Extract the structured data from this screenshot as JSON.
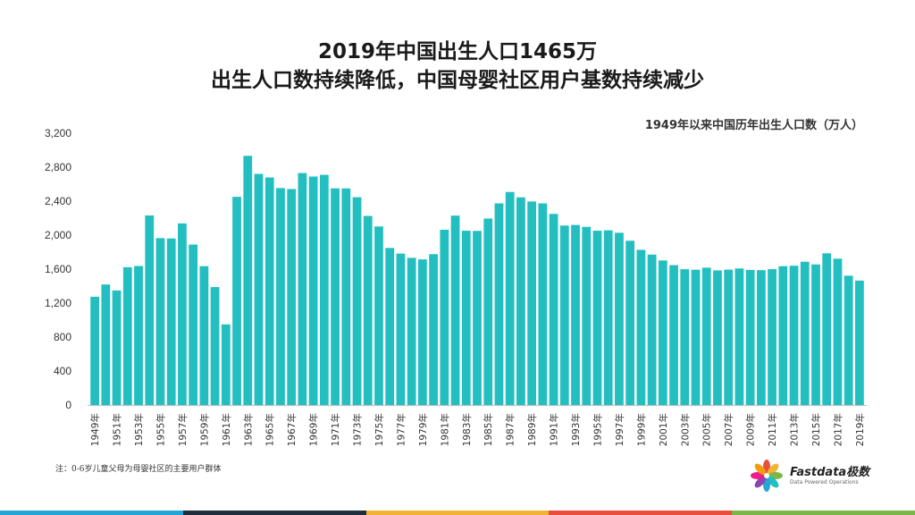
{
  "header": {
    "title_line1": "2019年中国出生人口1465万",
    "title_line2": "出生人口数持续降低，中国母婴社区用户基数持续减少"
  },
  "footnote": "注：0-6岁儿童父母为母婴社区的主要用户群体",
  "logo": {
    "name": "Fastdata极数",
    "tagline": "Data Powered Operations",
    "icon": "flower-petals-icon"
  },
  "colors": {
    "bar": "#23BFC0",
    "bottom_bar": [
      "#23A6D5",
      "#1F2D3D",
      "#F2B233",
      "#E94E3C",
      "#7AB648"
    ]
  },
  "chart_data": {
    "type": "bar",
    "title": "1949年以来中国历年出生人口数（万人）",
    "xlabel": "",
    "ylabel": "",
    "ylim": [
      0,
      3200
    ],
    "yticks": [
      "0",
      "400",
      "800",
      "1,200",
      "1,600",
      "2,000",
      "2,400",
      "2,800",
      "3,200"
    ],
    "grid": false,
    "categories": [
      "1949年",
      "1950年",
      "1951年",
      "1952年",
      "1953年",
      "1954年",
      "1955年",
      "1956年",
      "1957年",
      "1958年",
      "1959年",
      "1960年",
      "1961年",
      "1962年",
      "1963年",
      "1964年",
      "1965年",
      "1966年",
      "1967年",
      "1968年",
      "1969年",
      "1970年",
      "1971年",
      "1972年",
      "1973年",
      "1974年",
      "1975年",
      "1976年",
      "1977年",
      "1978年",
      "1979年",
      "1980年",
      "1981年",
      "1982年",
      "1983年",
      "1984年",
      "1985年",
      "1986年",
      "1987年",
      "1988年",
      "1989年",
      "1990年",
      "1991年",
      "1992年",
      "1993年",
      "1994年",
      "1995年",
      "1996年",
      "1997年",
      "1998年",
      "1999年",
      "2000年",
      "2001年",
      "2002年",
      "2003年",
      "2004年",
      "2005年",
      "2006年",
      "2007年",
      "2008年",
      "2009年",
      "2010年",
      "2011年",
      "2012年",
      "2013年",
      "2014年",
      "2015年",
      "2016年",
      "2017年",
      "2018年",
      "2019年"
    ],
    "values": [
      1275,
      1419,
      1349,
      1622,
      1637,
      2232,
      1965,
      1961,
      2138,
      1889,
      1635,
      1389,
      949,
      2451,
      2934,
      2721,
      2679,
      2554,
      2543,
      2731,
      2690,
      2710,
      2551,
      2550,
      2447,
      2226,
      2102,
      1849,
      1783,
      1733,
      1715,
      1776,
      2064,
      2230,
      2052,
      2050,
      2196,
      2374,
      2508,
      2445,
      2396,
      2374,
      2250,
      2113,
      2120,
      2098,
      2052,
      2057,
      2028,
      1934,
      1827,
      1771,
      1702,
      1647,
      1599,
      1593,
      1617,
      1585,
      1594,
      1608,
      1591,
      1588,
      1600,
      1635,
      1640,
      1687,
      1655,
      1786,
      1723,
      1523,
      1465
    ],
    "xtick_labels": [
      "1949年",
      "1951年",
      "1953年",
      "1955年",
      "1957年",
      "1959年",
      "1961年",
      "1963年",
      "1965年",
      "1967年",
      "1969年",
      "1971年",
      "1973年",
      "1975年",
      "1977年",
      "1979年",
      "1981年",
      "1983年",
      "1985年",
      "1987年",
      "1989年",
      "1991年",
      "1993年",
      "1995年",
      "1997年",
      "1999年",
      "2001年",
      "2003年",
      "2005年",
      "2007年",
      "2009年",
      "2011年",
      "2013年",
      "2015年",
      "2017年",
      "2019年"
    ]
  }
}
